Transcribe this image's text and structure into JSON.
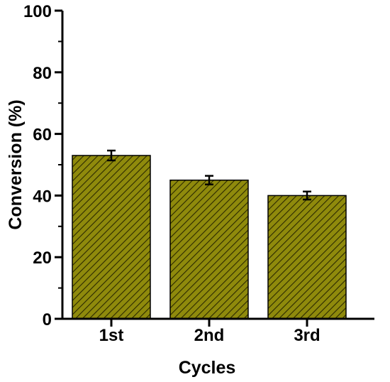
{
  "chart_data": {
    "type": "bar",
    "categories": [
      "1st",
      "2nd",
      "3rd"
    ],
    "values": [
      53,
      45,
      40
    ],
    "error": [
      1.6,
      1.4,
      1.3
    ],
    "xlabel": "Cycles",
    "ylabel": "Conversion (%)",
    "ylim": [
      0,
      100
    ],
    "yticks": [
      0,
      20,
      40,
      60,
      80,
      100
    ],
    "grid": false,
    "bar_color": "#8f8a0c",
    "hatch_color": "#2b2900"
  }
}
